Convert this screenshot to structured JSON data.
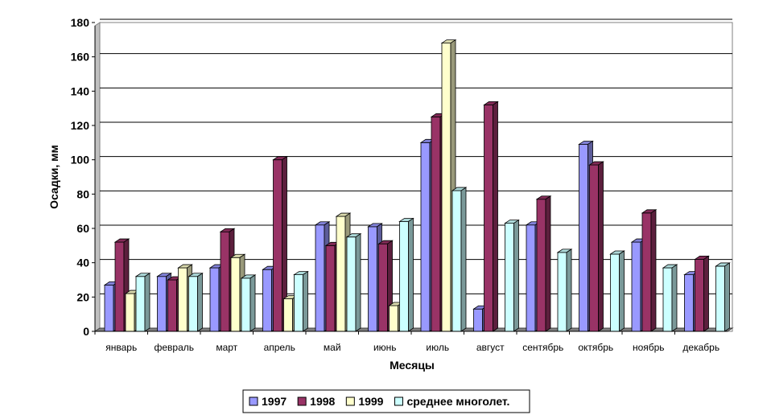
{
  "chart_data": {
    "type": "bar",
    "title": "",
    "xlabel": "Месяцы",
    "ylabel": "Осадки, мм",
    "ylim": [
      0,
      180
    ],
    "yticks": [
      0,
      20,
      40,
      60,
      80,
      100,
      120,
      140,
      160,
      180
    ],
    "grid": true,
    "legend_position": "bottom",
    "categories": [
      "январь",
      "февраль",
      "март",
      "апрель",
      "май",
      "июнь",
      "июль",
      "август",
      "сентябрь",
      "октябрь",
      "ноябрь",
      "декабрь"
    ],
    "series": [
      {
        "name": "1997",
        "color": "#9999ff",
        "values": [
          27,
          32,
          37,
          36,
          62,
          61,
          110,
          13,
          62,
          109,
          52,
          33
        ]
      },
      {
        "name": "1998",
        "color": "#993366",
        "values": [
          52,
          30,
          58,
          100,
          50,
          51,
          125,
          132,
          77,
          97,
          69,
          42
        ]
      },
      {
        "name": "1999",
        "color": "#ffffcc",
        "values": [
          22,
          37,
          43,
          19,
          67,
          15,
          168,
          null,
          null,
          null,
          null,
          null
        ]
      },
      {
        "name": "среднее многолет.",
        "color": "#ccffff",
        "values": [
          32,
          32,
          31,
          33,
          55,
          64,
          82,
          63,
          46,
          45,
          37,
          38
        ]
      }
    ]
  }
}
